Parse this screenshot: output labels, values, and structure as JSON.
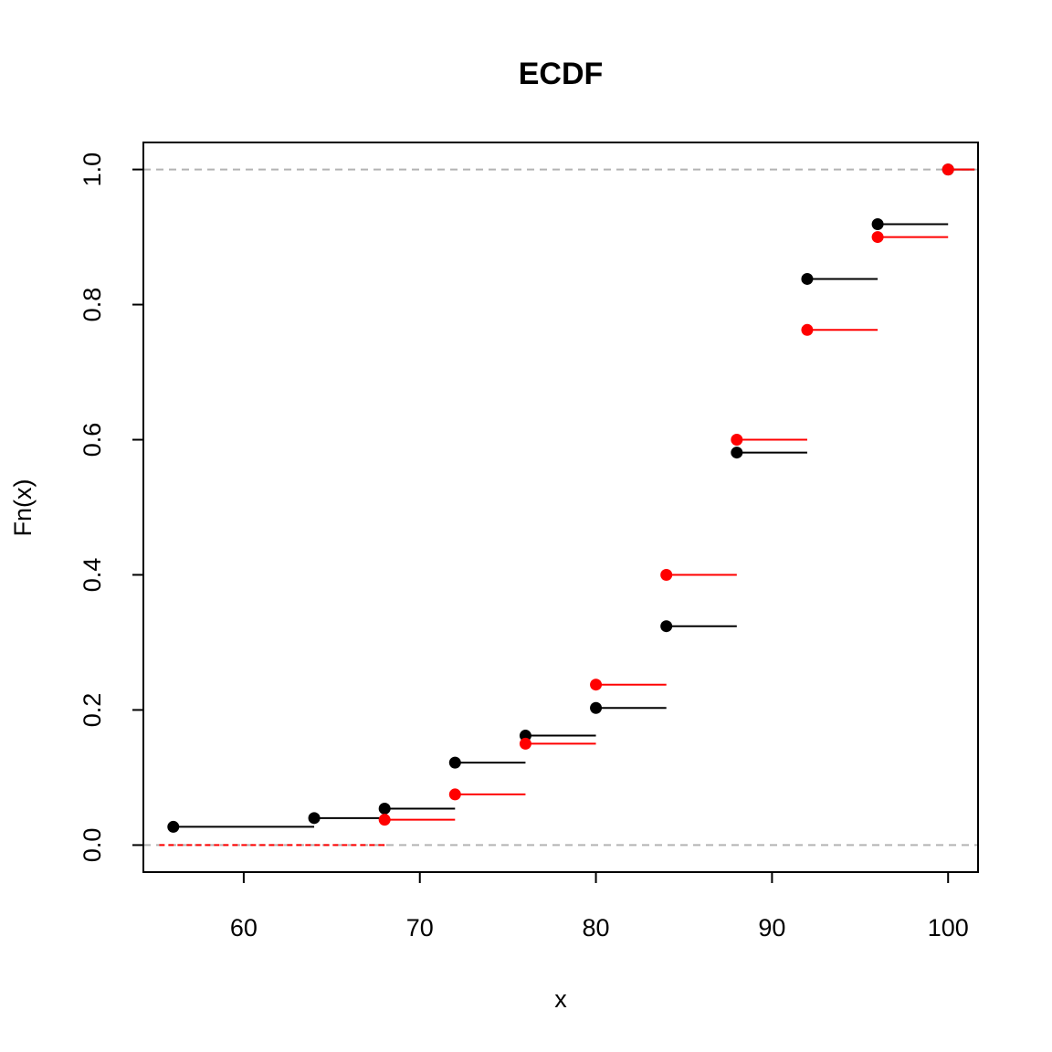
{
  "chart_data": {
    "type": "step",
    "title": "ECDF",
    "xlabel": "x",
    "ylabel": "Fn(x)",
    "xlim": [
      54.3,
      101.7
    ],
    "ylim": [
      -0.04,
      1.04
    ],
    "x_ticks": [
      60,
      70,
      80,
      90,
      100
    ],
    "y_ticks": [
      0.0,
      0.2,
      0.4,
      0.6,
      0.8,
      1.0
    ],
    "reference_lines": [
      0,
      1
    ],
    "reference_line_color": "#b3b3b3",
    "series": [
      {
        "color": "#000000",
        "points": [
          {
            "x": 56,
            "y": 0.027
          },
          {
            "x": 64,
            "y": 0.04
          },
          {
            "x": 68,
            "y": 0.054
          },
          {
            "x": 72,
            "y": 0.122
          },
          {
            "x": 76,
            "y": 0.162
          },
          {
            "x": 80,
            "y": 0.203
          },
          {
            "x": 84,
            "y": 0.324
          },
          {
            "x": 88,
            "y": 0.581
          },
          {
            "x": 92,
            "y": 0.838
          },
          {
            "x": 96,
            "y": 0.919
          },
          {
            "x": 100,
            "y": 1.0
          }
        ]
      },
      {
        "color": "#ff0000",
        "points": [
          {
            "x": 68,
            "y": 0.0375
          },
          {
            "x": 72,
            "y": 0.075
          },
          {
            "x": 76,
            "y": 0.15
          },
          {
            "x": 80,
            "y": 0.2375
          },
          {
            "x": 84,
            "y": 0.4
          },
          {
            "x": 88,
            "y": 0.6
          },
          {
            "x": 92,
            "y": 0.7625
          },
          {
            "x": 96,
            "y": 0.9
          },
          {
            "x": 100,
            "y": 1.0
          }
        ]
      }
    ]
  }
}
